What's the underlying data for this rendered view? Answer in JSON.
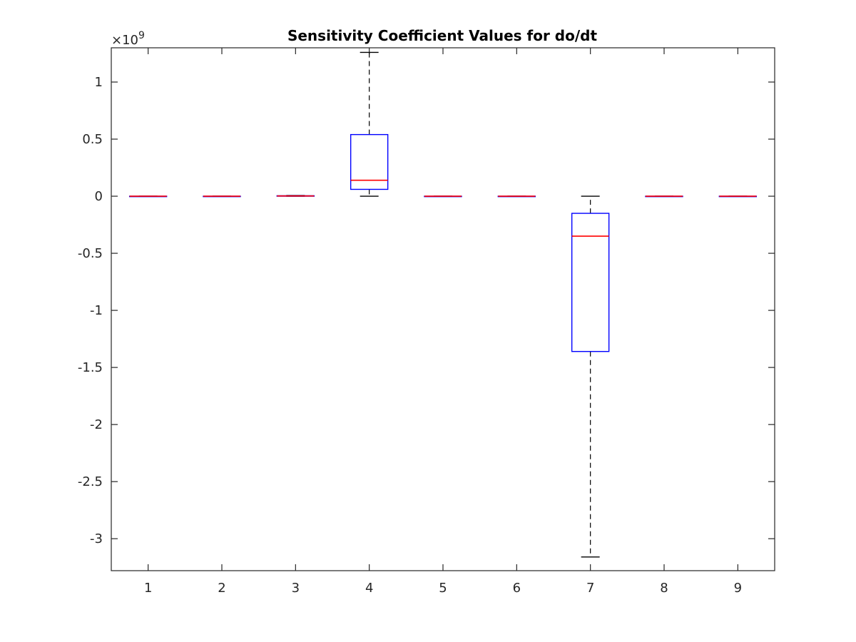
{
  "chart_data": {
    "type": "box",
    "title": "Sensitivity Coefficient Values for do/dt",
    "xlabel": "",
    "ylabel": "",
    "y_exponent_label": "×10",
    "y_exponent_power": "9",
    "y_scale": 1000000000,
    "ylim": [
      -3.28,
      1.3
    ],
    "yticks": [
      1,
      0.5,
      0,
      -0.5,
      -1,
      -1.5,
      -2,
      -2.5,
      -3
    ],
    "ytick_labels": [
      "1",
      "0.5",
      "0",
      "-0.5",
      "-1",
      "-1.5",
      "-2",
      "-2.5",
      "-3"
    ],
    "categories": [
      "1",
      "2",
      "3",
      "4",
      "5",
      "6",
      "7",
      "8",
      "9"
    ],
    "grid": false,
    "colors": {
      "box": "#0000ff",
      "median": "#ff0000",
      "whisker": "#000000",
      "axis": "#262626"
    },
    "boxes": [
      {
        "category": "1",
        "min": 0,
        "q1": 0,
        "median": 0,
        "q3": 0,
        "max": 0
      },
      {
        "category": "2",
        "min": 0,
        "q1": 0,
        "median": 0,
        "q3": 0,
        "max": 0
      },
      {
        "category": "3",
        "min": 0,
        "q1": 0,
        "median": 0.002,
        "q3": 0.004,
        "max": 0.006
      },
      {
        "category": "4",
        "min": 0,
        "q1": 0.06,
        "median": 0.14,
        "q3": 0.54,
        "max": 1.26
      },
      {
        "category": "5",
        "min": 0,
        "q1": 0,
        "median": 0,
        "q3": 0,
        "max": 0
      },
      {
        "category": "6",
        "min": 0,
        "q1": 0,
        "median": 0,
        "q3": 0,
        "max": 0
      },
      {
        "category": "7",
        "min": -3.16,
        "q1": -1.36,
        "median": -0.35,
        "q3": -0.15,
        "max": 0
      },
      {
        "category": "8",
        "min": 0,
        "q1": 0,
        "median": 0,
        "q3": 0,
        "max": 0
      },
      {
        "category": "9",
        "min": 0,
        "q1": 0,
        "median": 0,
        "q3": 0,
        "max": 0
      }
    ]
  }
}
